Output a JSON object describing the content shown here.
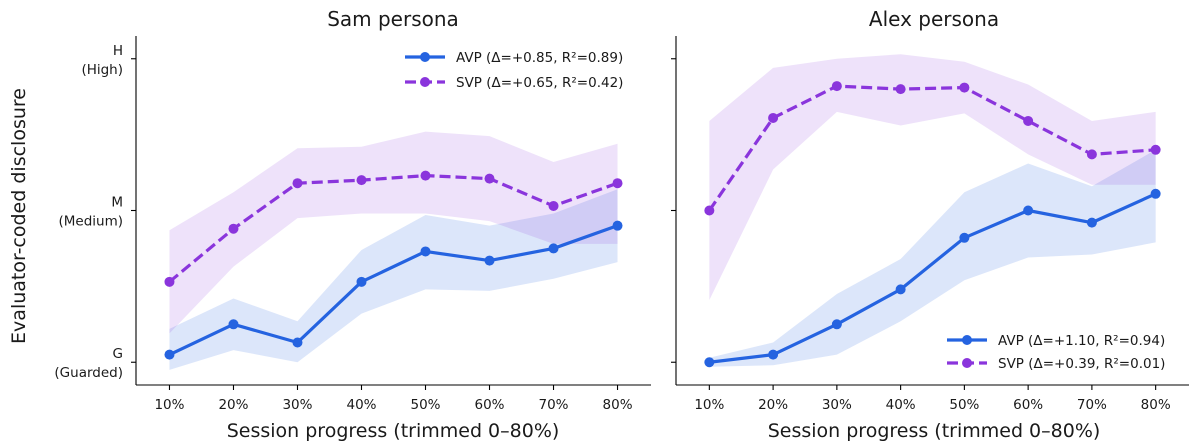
{
  "figure": {
    "ylabel": "Evaluator-coded disclosure",
    "ytick_labels": [
      {
        "value": 0,
        "lines": [
          "G",
          "(Guarded)"
        ]
      },
      {
        "value": 1,
        "lines": [
          "M",
          "(Medium)"
        ]
      },
      {
        "value": 2,
        "lines": [
          "H",
          "(High)"
        ]
      }
    ],
    "colors": {
      "AVP": "#2563e0",
      "SVP": "#8a35dc"
    }
  },
  "chart_data": [
    {
      "type": "line",
      "title": "Sam persona",
      "xlabel": "Session progress (trimmed 0–80%)",
      "categories": [
        "10%",
        "20%",
        "30%",
        "40%",
        "50%",
        "60%",
        "70%",
        "80%"
      ],
      "ylim": [
        -0.15,
        2.15
      ],
      "legend_position": "top-right",
      "series": [
        {
          "name": "AVP (Δ=+0.85, R²=0.89)",
          "key": "AVP",
          "style": "solid",
          "values": [
            0.05,
            0.25,
            0.13,
            0.53,
            0.73,
            0.67,
            0.75,
            0.9
          ],
          "band_low": [
            -0.05,
            0.08,
            0.0,
            0.32,
            0.48,
            0.47,
            0.55,
            0.66
          ],
          "band_high": [
            0.22,
            0.42,
            0.27,
            0.74,
            0.97,
            0.9,
            0.98,
            1.14
          ]
        },
        {
          "name": "SVP (Δ=+0.65, R²=0.42)",
          "key": "SVP",
          "style": "dashed",
          "values": [
            0.53,
            0.88,
            1.18,
            1.2,
            1.23,
            1.21,
            1.03,
            1.18
          ],
          "band_low": [
            0.19,
            0.63,
            0.95,
            0.98,
            0.98,
            0.93,
            0.78,
            0.78
          ],
          "band_high": [
            0.87,
            1.12,
            1.41,
            1.42,
            1.52,
            1.49,
            1.32,
            1.44
          ]
        }
      ]
    },
    {
      "type": "line",
      "title": "Alex persona",
      "xlabel": "Session progress (trimmed 0–80%)",
      "categories": [
        "10%",
        "20%",
        "30%",
        "40%",
        "50%",
        "60%",
        "70%",
        "80%"
      ],
      "ylim": [
        -0.15,
        2.15
      ],
      "legend_position": "bottom-right",
      "series": [
        {
          "name": "AVP (Δ=+1.10, R²=0.94)",
          "key": "AVP",
          "style": "solid",
          "values": [
            0.0,
            0.05,
            0.25,
            0.48,
            0.82,
            1.0,
            0.92,
            1.11
          ],
          "band_low": [
            -0.03,
            -0.02,
            0.05,
            0.27,
            0.54,
            0.69,
            0.71,
            0.79
          ],
          "band_high": [
            0.03,
            0.13,
            0.45,
            0.68,
            1.12,
            1.31,
            1.16,
            1.4
          ]
        },
        {
          "name": "SVP (Δ=+0.39, R²=0.01)",
          "key": "SVP",
          "style": "dashed",
          "values": [
            1.0,
            1.61,
            1.82,
            1.8,
            1.81,
            1.59,
            1.37,
            1.4
          ],
          "band_low": [
            0.41,
            1.27,
            1.65,
            1.56,
            1.64,
            1.37,
            1.17,
            1.17
          ],
          "band_high": [
            1.59,
            1.94,
            2.0,
            2.03,
            1.98,
            1.83,
            1.59,
            1.65
          ]
        }
      ]
    }
  ]
}
